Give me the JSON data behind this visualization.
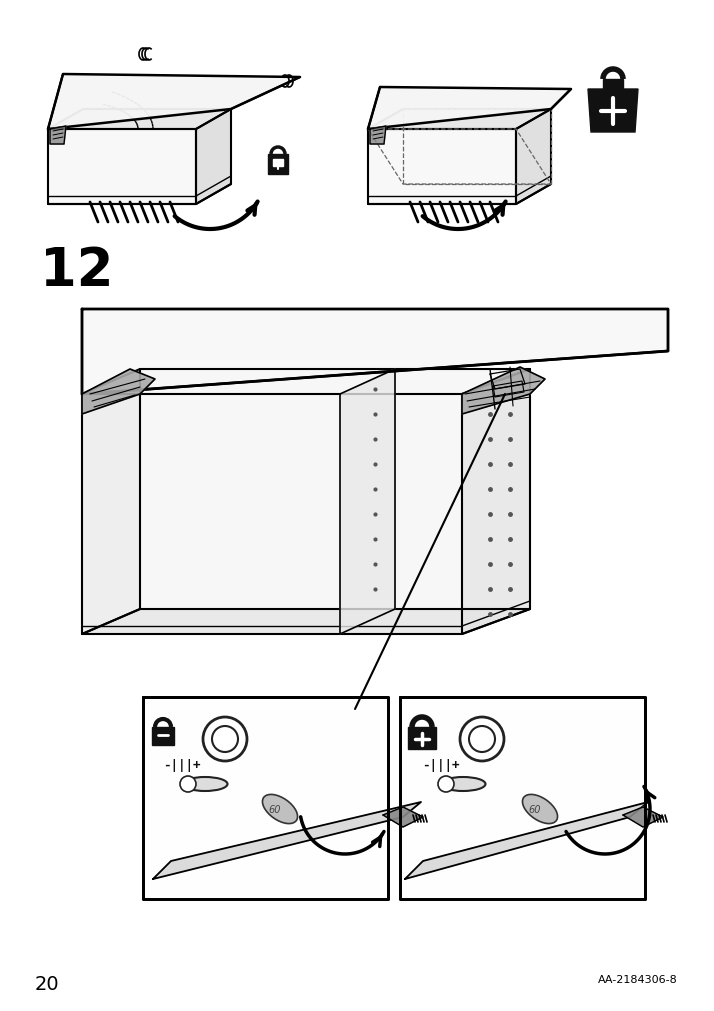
{
  "page_number": "20",
  "doc_ref": "AA-2184306-8",
  "step_number": "12",
  "bg_color": "#ffffff",
  "line_color": "#000000",
  "page_width": 7.14,
  "page_height": 10.12,
  "dpi": 100
}
